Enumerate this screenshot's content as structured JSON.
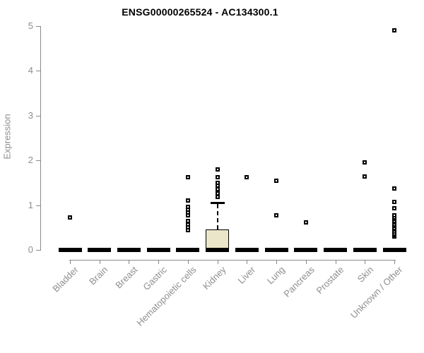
{
  "title": "ENSG00000265524 - AC134300.1",
  "colors": {
    "title": "#000000",
    "axis_line": "#898989",
    "tick_label": "#8e8e8e",
    "box_fill": "#ebe5c9",
    "box_border": "#000000",
    "marker_border": "#000000",
    "marker_fill": "#ffffff",
    "background": "#ffffff"
  },
  "chart_data": {
    "type": "boxplot",
    "title": "ENSG00000265524 - AC134300.1",
    "xlabel": "",
    "ylabel": "Expression",
    "ylim": [
      0,
      5
    ],
    "yticks": [
      0,
      1,
      2,
      3,
      4,
      5
    ],
    "grid": false,
    "legend": false,
    "categories": [
      "Bladder",
      "Brain",
      "Breast",
      "Gastric",
      "Hematopoietic cells",
      "Kidney",
      "Liver",
      "Lung",
      "Pancreas",
      "Prostate",
      "Skin",
      "Unknown / Other"
    ],
    "series": [
      {
        "category": "Bladder",
        "q1": 0,
        "median": 0,
        "q3": 0,
        "whisker_low": 0,
        "whisker_high": 0,
        "outliers": [
          0.73
        ]
      },
      {
        "category": "Brain",
        "q1": 0,
        "median": 0,
        "q3": 0,
        "whisker_low": 0,
        "whisker_high": 0,
        "outliers": []
      },
      {
        "category": "Breast",
        "q1": 0,
        "median": 0,
        "q3": 0,
        "whisker_low": 0,
        "whisker_high": 0,
        "outliers": []
      },
      {
        "category": "Gastric",
        "q1": 0,
        "median": 0,
        "q3": 0,
        "whisker_low": 0,
        "whisker_high": 0,
        "outliers": []
      },
      {
        "category": "Hematopoietic cells",
        "q1": 0,
        "median": 0,
        "q3": 0,
        "whisker_low": 0,
        "whisker_high": 0,
        "outliers": [
          0.44,
          0.5,
          0.57,
          0.64,
          0.77,
          0.83,
          0.9,
          0.97,
          1.1,
          1.62
        ]
      },
      {
        "category": "Kidney",
        "q1": 0,
        "median": 0,
        "q3": 0.45,
        "whisker_low": 0,
        "whisker_high": 1.05,
        "outliers": [
          1.19,
          1.26,
          1.36,
          1.43,
          1.5,
          1.62,
          1.8
        ]
      },
      {
        "category": "Liver",
        "q1": 0,
        "median": 0,
        "q3": 0,
        "whisker_low": 0,
        "whisker_high": 0,
        "outliers": [
          1.62
        ]
      },
      {
        "category": "Lung",
        "q1": 0,
        "median": 0,
        "q3": 0,
        "whisker_low": 0,
        "whisker_high": 0,
        "outliers": [
          0.78,
          1.55
        ]
      },
      {
        "category": "Pancreas",
        "q1": 0,
        "median": 0,
        "q3": 0,
        "whisker_low": 0,
        "whisker_high": 0,
        "outliers": [
          0.61
        ]
      },
      {
        "category": "Prostate",
        "q1": 0,
        "median": 0,
        "q3": 0,
        "whisker_low": 0,
        "whisker_high": 0,
        "outliers": []
      },
      {
        "category": "Skin",
        "q1": 0,
        "median": 0,
        "q3": 0,
        "whisker_low": 0,
        "whisker_high": 0,
        "outliers": [
          1.64,
          1.96
        ]
      },
      {
        "category": "Unknown / Other",
        "q1": 0,
        "median": 0,
        "q3": 0,
        "whisker_low": 0,
        "whisker_high": 0,
        "outliers": [
          0.3,
          0.33,
          0.37,
          0.41,
          0.45,
          0.49,
          0.53,
          0.57,
          0.61,
          0.65,
          0.69,
          0.73,
          0.77,
          0.93,
          1.08,
          1.38,
          4.9
        ]
      }
    ]
  }
}
